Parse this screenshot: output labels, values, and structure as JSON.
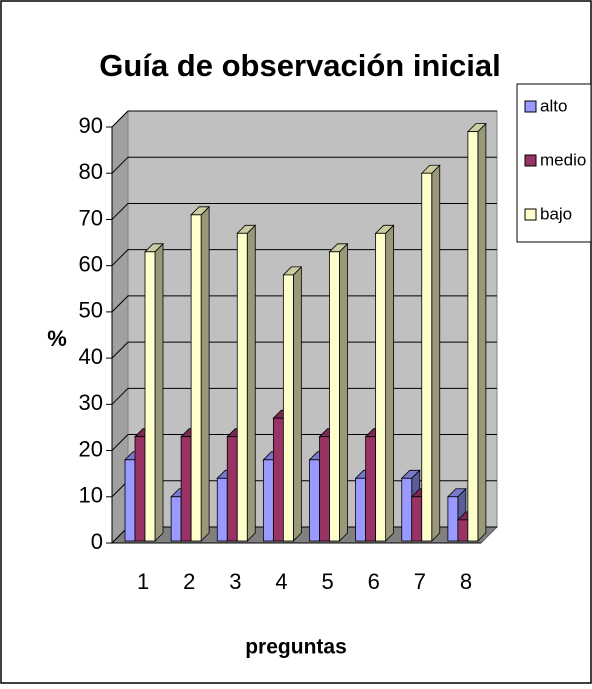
{
  "chart_data": {
    "type": "bar3d",
    "title": "Guía de observación inicial",
    "x_label": "preguntas",
    "y_label": "%",
    "categories": [
      "1",
      "2",
      "3",
      "4",
      "5",
      "6",
      "7",
      "8"
    ],
    "series": [
      {
        "name": "alto",
        "color": "#9999ff",
        "values": [
          18,
          10,
          14,
          18,
          18,
          14,
          14,
          10
        ]
      },
      {
        "name": "medio",
        "color": "#993366",
        "values": [
          23,
          23,
          23,
          27,
          23,
          23,
          10,
          5
        ]
      },
      {
        "name": "bajo",
        "color": "#ffffcc",
        "values": [
          63,
          71,
          67,
          58,
          63,
          67,
          80,
          89
        ]
      }
    ],
    "ylim": [
      0,
      90
    ],
    "yticks": [
      0,
      10,
      20,
      30,
      40,
      50,
      60,
      70,
      80,
      90
    ],
    "grid": true,
    "legend": "right"
  }
}
